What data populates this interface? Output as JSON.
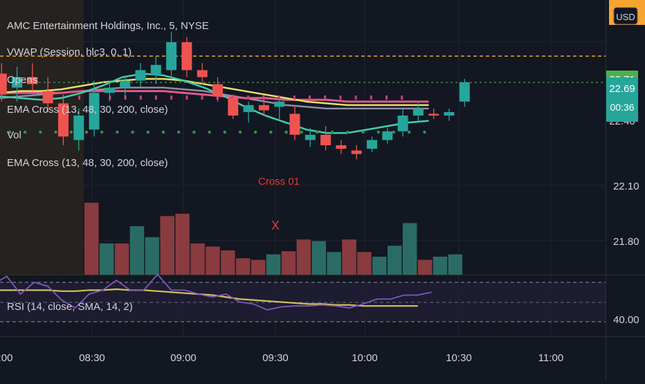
{
  "header": {
    "symbol_line": "AMC Entertainment Holdings, Inc., 5, NYSE",
    "currency": "USD"
  },
  "indicators": [
    "VWAP (Session, hlc3, 0, 1)",
    "Opens",
    "EMA Cross (13, 48, 30, 200, close)",
    "Vol",
    "EMA Cross (13, 48, 30, 200, close)"
  ],
  "rsi_label": "RSI (14, close, SMA, 14, 2)",
  "annotations": {
    "cross_label": "Cross 01",
    "cross_mark": "X"
  },
  "price_axis": {
    "ticks": [
      "22.10",
      "21.80"
    ],
    "badge_high": "22.71",
    "badge_last": "22.69",
    "countdown": "00:36",
    "partial_tick": "22.40"
  },
  "rsi_axis": {
    "ticks": [
      "40.00"
    ]
  },
  "time_axis": {
    "ticks": [
      ":00",
      "08:30",
      "09:00",
      "09:30",
      "10:00",
      "10:30",
      "11:00"
    ]
  },
  "colors": {
    "background": "#131722",
    "premarket_shade": "#2a2520",
    "up": "#26a69a",
    "down": "#ef5350",
    "vol_up": "#2b6b66",
    "vol_down": "#8a3b3f",
    "orange_line": "#f7a531",
    "green_dotted": "#4caf50",
    "rsi_line": "#7e57c2",
    "rsi_ma": "#d4c25a",
    "cross_label": "#e53935"
  },
  "chart_data": {
    "type": "candlestick",
    "interval_minutes": 5,
    "candles": [
      {
        "t": "08:00",
        "o": 22.8,
        "h": 22.88,
        "l": 22.68,
        "c": 22.74
      },
      {
        "t": "08:05",
        "o": 22.74,
        "h": 22.8,
        "l": 22.58,
        "c": 22.62
      },
      {
        "t": "08:10",
        "o": 22.66,
        "h": 22.78,
        "l": 22.58,
        "c": 22.72
      },
      {
        "t": "08:15",
        "o": 22.72,
        "h": 22.8,
        "l": 22.64,
        "c": 22.68
      },
      {
        "t": "08:20",
        "o": 22.64,
        "h": 22.72,
        "l": 22.52,
        "c": 22.57
      },
      {
        "t": "08:25",
        "o": 22.57,
        "h": 22.62,
        "l": 22.33,
        "c": 22.38
      },
      {
        "t": "08:30",
        "o": 22.36,
        "h": 22.54,
        "l": 22.3,
        "c": 22.5
      },
      {
        "t": "08:35",
        "o": 22.42,
        "h": 22.7,
        "l": 22.38,
        "c": 22.63
      },
      {
        "t": "08:40",
        "o": 22.63,
        "h": 22.7,
        "l": 22.58,
        "c": 22.66
      },
      {
        "t": "08:45",
        "o": 22.66,
        "h": 22.72,
        "l": 22.6,
        "c": 22.7
      },
      {
        "t": "08:50",
        "o": 22.7,
        "h": 22.8,
        "l": 22.66,
        "c": 22.76
      },
      {
        "t": "08:55",
        "o": 22.73,
        "h": 22.84,
        "l": 22.68,
        "c": 22.79
      },
      {
        "t": "09:00",
        "o": 22.76,
        "h": 22.98,
        "l": 22.72,
        "c": 22.92
      },
      {
        "t": "09:05",
        "o": 22.92,
        "h": 22.95,
        "l": 22.72,
        "c": 22.76
      },
      {
        "t": "09:10",
        "o": 22.76,
        "h": 22.8,
        "l": 22.68,
        "c": 22.72
      },
      {
        "t": "09:15",
        "o": 22.68,
        "h": 22.72,
        "l": 22.58,
        "c": 22.61
      },
      {
        "t": "09:20",
        "o": 22.6,
        "h": 22.62,
        "l": 22.48,
        "c": 22.5
      },
      {
        "t": "09:25",
        "o": 22.52,
        "h": 22.58,
        "l": 22.46,
        "c": 22.56
      },
      {
        "t": "09:30",
        "o": 22.56,
        "h": 22.6,
        "l": 22.5,
        "c": 22.53
      },
      {
        "t": "09:35",
        "o": 22.55,
        "h": 22.6,
        "l": 22.48,
        "c": 22.58
      },
      {
        "t": "09:40",
        "o": 22.51,
        "h": 22.56,
        "l": 22.36,
        "c": 22.39
      },
      {
        "t": "09:45",
        "o": 22.36,
        "h": 22.43,
        "l": 22.32,
        "c": 22.39
      },
      {
        "t": "09:50",
        "o": 22.39,
        "h": 22.44,
        "l": 22.3,
        "c": 22.33
      },
      {
        "t": "09:55",
        "o": 22.33,
        "h": 22.36,
        "l": 22.28,
        "c": 22.31
      },
      {
        "t": "10:00",
        "o": 22.3,
        "h": 22.33,
        "l": 22.25,
        "c": 22.28
      },
      {
        "t": "10:05",
        "o": 22.31,
        "h": 22.38,
        "l": 22.29,
        "c": 22.36
      },
      {
        "t": "10:10",
        "o": 22.36,
        "h": 22.43,
        "l": 22.34,
        "c": 22.41
      },
      {
        "t": "10:15",
        "o": 22.41,
        "h": 22.54,
        "l": 22.38,
        "c": 22.5
      },
      {
        "t": "10:20",
        "o": 22.5,
        "h": 22.57,
        "l": 22.47,
        "c": 22.54
      },
      {
        "t": "10:25",
        "o": 22.51,
        "h": 22.54,
        "l": 22.48,
        "c": 22.5
      },
      {
        "t": "10:30",
        "o": 22.5,
        "h": 22.54,
        "l": 22.47,
        "c": 22.52
      },
      {
        "t": "10:35",
        "o": 22.58,
        "h": 22.71,
        "l": 22.55,
        "c": 22.69
      }
    ],
    "volume_bars": [
      {
        "d": "down",
        "v": 92
      },
      {
        "d": "up",
        "v": 40
      },
      {
        "d": "down",
        "v": 40
      },
      {
        "d": "up",
        "v": 62
      },
      {
        "d": "up",
        "v": 48
      },
      {
        "d": "down",
        "v": 75
      },
      {
        "d": "down",
        "v": 78
      },
      {
        "d": "down",
        "v": 40
      },
      {
        "d": "down",
        "v": 36
      },
      {
        "d": "down",
        "v": 31
      },
      {
        "d": "down",
        "v": 21
      },
      {
        "d": "down",
        "v": 19
      },
      {
        "d": "up",
        "v": 26
      },
      {
        "d": "down",
        "v": 30
      },
      {
        "d": "down",
        "v": 45
      },
      {
        "d": "up",
        "v": 43
      },
      {
        "d": "up",
        "v": 29
      },
      {
        "d": "down",
        "v": 45
      },
      {
        "d": "down",
        "v": 29
      },
      {
        "d": "up",
        "v": 23
      },
      {
        "d": "up",
        "v": 37
      },
      {
        "d": "up",
        "v": 66
      },
      {
        "d": "down",
        "v": 19
      },
      {
        "d": "up",
        "v": 23
      },
      {
        "d": "up",
        "v": 26
      }
    ],
    "rsi": [
      68,
      76,
      58,
      70,
      66,
      52,
      44,
      58,
      62,
      72,
      62,
      62,
      78,
      62,
      62,
      58,
      55,
      58,
      50,
      48,
      42,
      45,
      46,
      46,
      47,
      46,
      44,
      48,
      53,
      53,
      57,
      57,
      60
    ],
    "rsi_ma": [
      62,
      62,
      62,
      62,
      62,
      61,
      61,
      62,
      62,
      63,
      62,
      62,
      61,
      60,
      59,
      58,
      57,
      55,
      53,
      52,
      51,
      50,
      49,
      48,
      48,
      47,
      47,
      46,
      46,
      46,
      46,
      46
    ],
    "ema_teal": [
      22.61,
      22.6,
      22.59,
      22.6,
      22.63,
      22.67,
      22.72,
      22.74,
      22.73,
      22.7,
      22.66,
      22.61,
      22.55,
      22.5,
      22.46,
      22.42,
      22.4,
      22.4,
      22.42,
      22.44,
      22.46,
      22.47
    ],
    "ema_yellow": [
      22.63,
      22.64,
      22.64,
      22.65,
      22.67,
      22.69,
      22.7,
      22.71,
      22.71,
      22.7,
      22.68,
      22.66,
      22.64,
      22.62,
      22.6,
      22.58,
      22.57,
      22.56,
      22.56,
      22.56,
      22.56,
      22.56
    ],
    "ema_pink": [
      22.63,
      22.63,
      22.63,
      22.63,
      22.64,
      22.64,
      22.64,
      22.64,
      22.64,
      22.63,
      22.62,
      22.61,
      22.6,
      22.6,
      22.59,
      22.59,
      22.59,
      22.58,
      22.58,
      22.58,
      22.58,
      22.58
    ],
    "ema_gray": [
      22.6,
      22.61,
      22.62,
      22.63,
      22.64,
      22.65,
      22.66,
      22.66,
      22.66,
      22.65,
      22.64,
      22.62,
      22.6,
      22.58,
      22.56,
      22.55,
      22.54,
      22.54,
      22.54,
      22.54,
      22.54,
      22.54
    ],
    "orange_level": 22.84,
    "green_dotted_level": 22.69,
    "rsi_bands": [
      70,
      30
    ],
    "price_ticks": [
      22.1,
      21.8
    ],
    "x_ticks": [
      "08:30",
      "09:00",
      "09:30",
      "10:00",
      "10:30",
      "11:00"
    ]
  }
}
